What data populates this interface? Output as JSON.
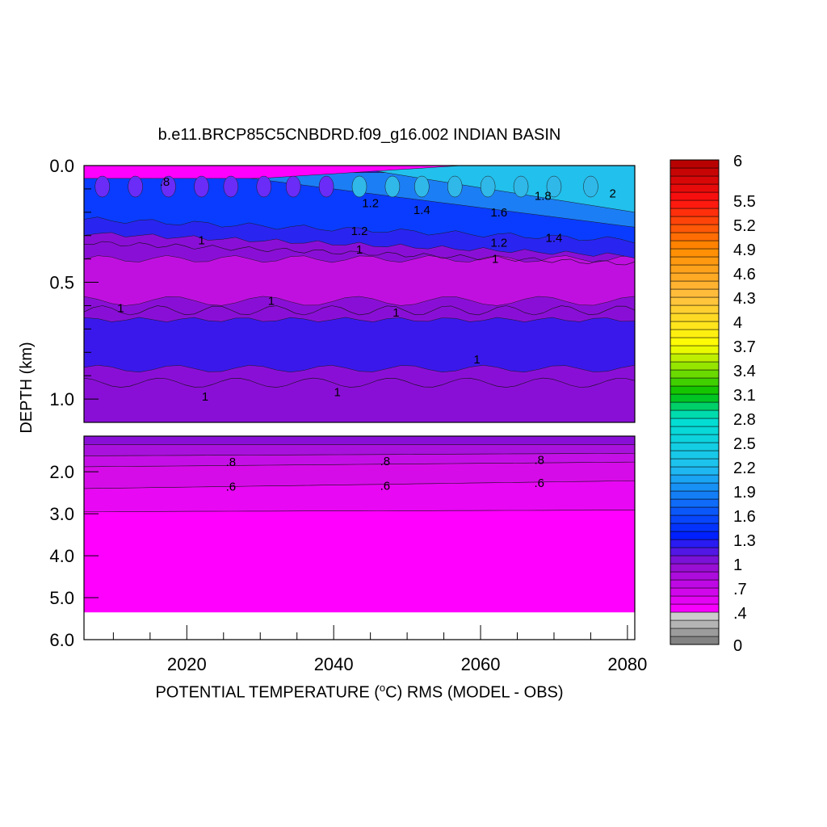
{
  "chart_data": {
    "type": "heatmap",
    "title": "b.e11.BRCP85C5CNBDRD.f09_g16.002 INDIAN BASIN",
    "xlabel_main": "POTENTIAL TEMPERATURE (",
    "xlabel_unit_sup": "o",
    "xlabel_rest": "C) RMS (MODEL - OBS)",
    "ylabel": "DEPTH (km)",
    "x_range": [
      2006,
      2081
    ],
    "x_ticks": [
      "2020",
      "2040",
      "2060",
      "2080"
    ],
    "x_tick_values": [
      2020,
      2040,
      2060,
      2080
    ],
    "upper_panel": {
      "y_range_km": [
        0.0,
        1.1
      ],
      "y_ticks": [
        "0.0",
        "0.5",
        "1.0"
      ],
      "y_tick_values": [
        0.0,
        0.5,
        1.0
      ]
    },
    "lower_panel": {
      "y_range_km": [
        1.15,
        6.0
      ],
      "y_ticks": [
        "2.0",
        "3.0",
        "4.0",
        "5.0",
        "6.0"
      ],
      "y_tick_values": [
        2.0,
        3.0,
        4.0,
        5.0,
        6.0
      ],
      "data_bottom_km": 5.35
    },
    "colorbar": {
      "labels": [
        "6",
        "5.5",
        "5.2",
        "4.9",
        "4.6",
        "4.3",
        "4",
        "3.7",
        "3.4",
        "3.1",
        "2.8",
        "2.5",
        "2.2",
        "1.9",
        "1.6",
        "1.3",
        "1",
        ".7",
        ".4",
        "0"
      ],
      "label_values": [
        6,
        5.5,
        5.2,
        4.9,
        4.6,
        4.3,
        4,
        3.7,
        3.4,
        3.1,
        2.8,
        2.5,
        2.2,
        1.9,
        1.6,
        1.3,
        1,
        0.7,
        0.4,
        0
      ],
      "levels_min": 0,
      "levels_max": 6,
      "colors": {
        "grey_low": "#777777",
        "grey_high": "#d6d6d6",
        "magenta": "#ff00ff",
        "purple": "#9010d0",
        "blue": "#0020ff",
        "cyan": "#00e0d0",
        "green": "#00c000",
        "yellow": "#ffff00",
        "orange": "#ff8c00",
        "red": "#ff1010",
        "darkred": "#b00000"
      }
    },
    "contour_labels_upper": [
      {
        "text": "1.8",
        "x": 2068.5,
        "y": 0.13
      },
      {
        "text": "2",
        "x": 2078,
        "y": 0.12
      },
      {
        "text": "1.6",
        "x": 2062.5,
        "y": 0.2
      },
      {
        "text": "1.4",
        "x": 2052,
        "y": 0.19
      },
      {
        "text": "1.4",
        "x": 2070,
        "y": 0.31
      },
      {
        "text": "1.2",
        "x": 2062.5,
        "y": 0.33
      },
      {
        "text": "1.2",
        "x": 2043.5,
        "y": 0.28
      },
      {
        "text": "1.2",
        "x": 2045,
        "y": 0.16
      },
      {
        "text": "1",
        "x": 2022,
        "y": 0.32
      },
      {
        "text": "1",
        "x": 2043.5,
        "y": 0.36
      },
      {
        "text": "1",
        "x": 2062,
        "y": 0.4
      },
      {
        "text": "1",
        "x": 2011,
        "y": 0.61
      },
      {
        "text": "1",
        "x": 2031.5,
        "y": 0.58
      },
      {
        "text": "1",
        "x": 2048.5,
        "y": 0.63
      },
      {
        "text": "1",
        "x": 2059.5,
        "y": 0.83
      },
      {
        "text": "1",
        "x": 2022.5,
        "y": 0.99
      },
      {
        "text": "1",
        "x": 2040.5,
        "y": 0.97
      },
      {
        "text": ".8",
        "x": 2017,
        "y": 0.07
      }
    ],
    "contour_labels_lower": [
      {
        "text": ".8",
        "x": 2026,
        "y": 1.77
      },
      {
        "text": ".8",
        "x": 2047,
        "y": 1.75
      },
      {
        "text": ".8",
        "x": 2068,
        "y": 1.72
      },
      {
        "text": ".6",
        "x": 2026,
        "y": 2.35
      },
      {
        "text": ".6",
        "x": 2047,
        "y": 2.33
      },
      {
        "text": ".6",
        "x": 2068,
        "y": 2.27
      }
    ]
  }
}
